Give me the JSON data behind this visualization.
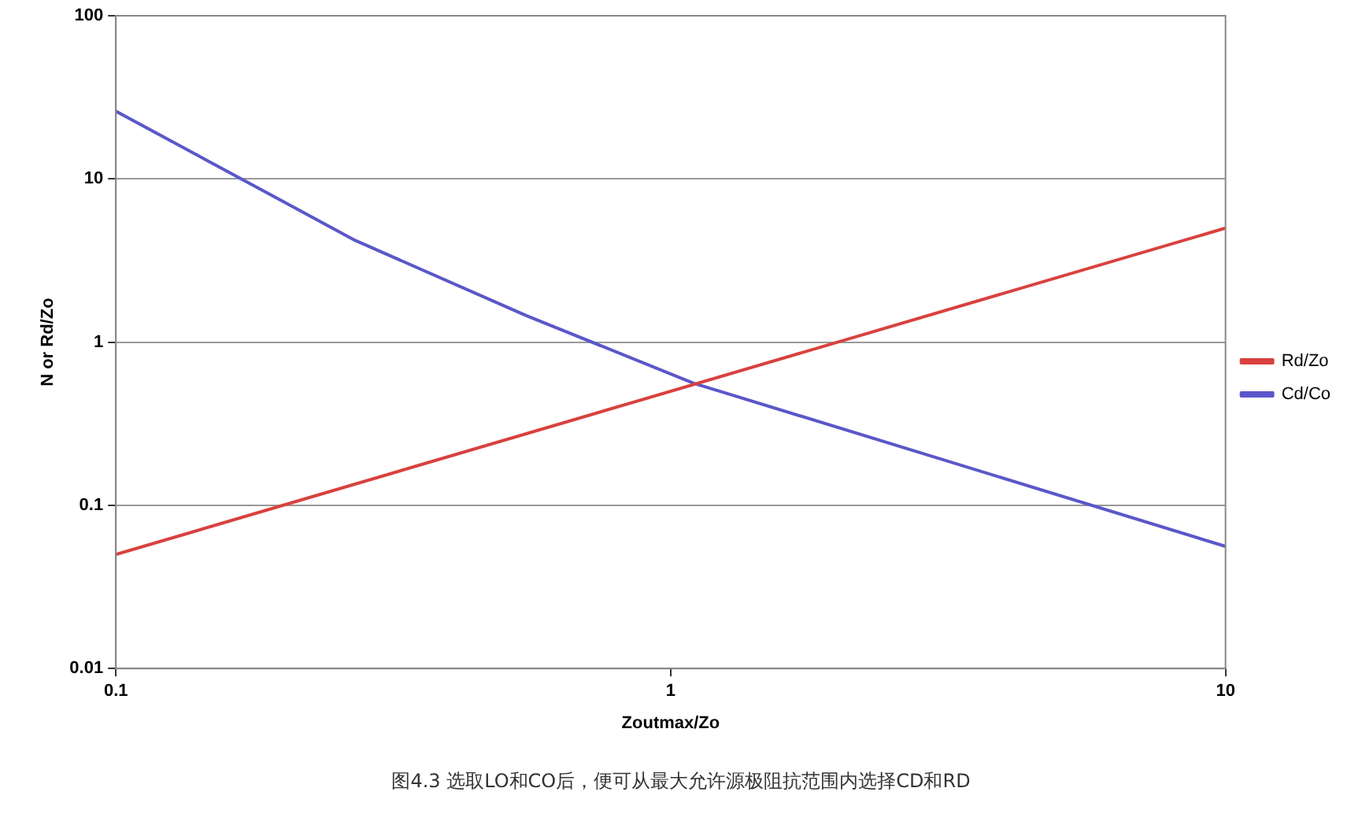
{
  "chart_data": {
    "type": "line",
    "xlabel": "Zoutmax/Zo",
    "ylabel": "N or Rd/Zo",
    "log": "xy",
    "xlim": [
      0.1,
      10
    ],
    "xticks": [
      0.1,
      1,
      10
    ],
    "ylim": [
      0.01,
      100
    ],
    "yticks": [
      0.01,
      0.1,
      1,
      10,
      100
    ],
    "grid": "y",
    "legend": "right",
    "marker": "none",
    "line_style": "solid",
    "series": [
      {
        "name": "Rd/Zo",
        "color": "#d9413e",
        "x": [
          0.1,
          10
        ],
        "values": [
          0.05,
          5
        ]
      },
      {
        "name": "Cd/Co",
        "color": "#5b57c9",
        "x": [
          0.1,
          0.27,
          0.55,
          1.1,
          10
        ],
        "values": [
          26,
          4.2,
          1.45,
          0.56,
          0.056
        ]
      }
    ],
    "annotations": [
      "图4.3 选取LO和CO后，便可从最大允许源极阻抗范围内选择CD和RD"
    ]
  }
}
